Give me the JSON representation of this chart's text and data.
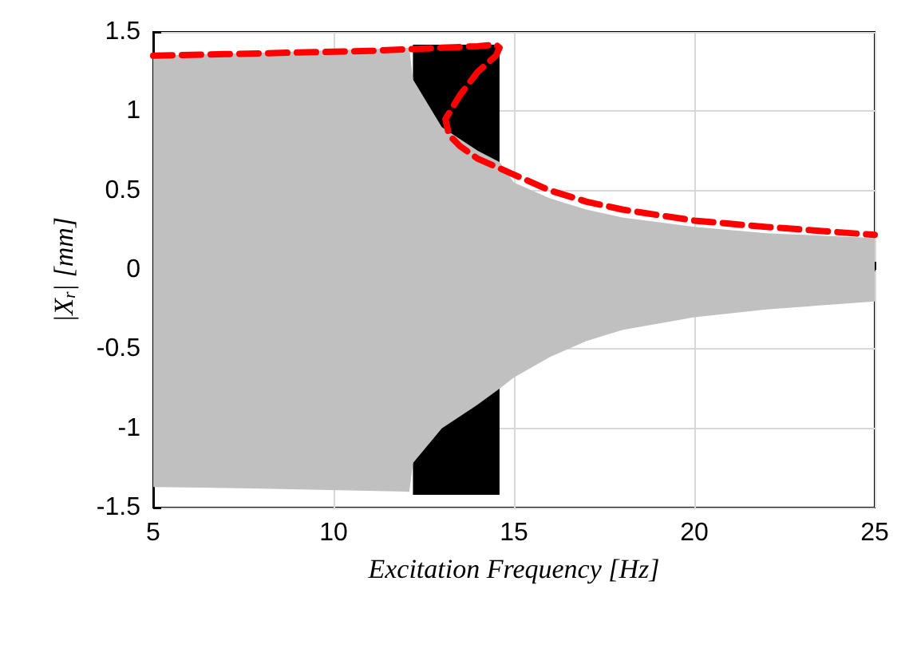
{
  "chart_data": {
    "type": "area",
    "xlabel": "Excitation Frequency [Hz]",
    "ylabel": "|X$_{r}$| [mm]",
    "xlim": [
      5,
      25
    ],
    "ylim": [
      -1.5,
      1.5
    ],
    "xticks": [
      5,
      10,
      15,
      20,
      25
    ],
    "yticks": [
      -1.5,
      -1,
      -0.5,
      0,
      0.5,
      1,
      1.5
    ],
    "grid": true,
    "series": [
      {
        "color": "#000000",
        "x": [
          12.2,
          14.6
        ],
        "values": [
          1.42,
          1.42
        ]
      },
      {
        "color": "#000000",
        "x": [
          12.2,
          14.6
        ],
        "values": [
          -1.42,
          -1.42
        ]
      },
      {
        "color": "#c0c0c0",
        "x": [
          5,
          8,
          12.1,
          12.2,
          13,
          14,
          14.6,
          15,
          16,
          17,
          18,
          20,
          22,
          25
        ],
        "values": [
          1.35,
          1.37,
          1.4,
          1.2,
          0.9,
          0.75,
          0.68,
          0.55,
          0.45,
          0.38,
          0.33,
          0.27,
          0.23,
          0.2
        ]
      },
      {
        "color": "#c0c0c0",
        "x": [
          5,
          8,
          12.1,
          12.2,
          13,
          14,
          14.6,
          15,
          16,
          17,
          18,
          20,
          22,
          25
        ],
        "values": [
          -1.37,
          -1.38,
          -1.4,
          -1.22,
          -1,
          -0.85,
          -0.75,
          -0.68,
          -0.55,
          -0.45,
          -0.38,
          -0.3,
          -0.25,
          -0.2
        ]
      },
      {
        "type": "line",
        "color": "#ff0000",
        "line_style": "dashed",
        "marker": "none",
        "x": [
          5,
          7,
          9,
          11,
          12,
          13,
          14,
          14.5,
          14.6,
          14.5,
          14,
          13.5,
          13.1,
          13.2,
          13.5,
          14,
          15,
          16,
          17,
          18,
          20,
          22,
          25
        ],
        "values": [
          1.35,
          1.36,
          1.37,
          1.38,
          1.39,
          1.4,
          1.41,
          1.42,
          1.4,
          1.35,
          1.25,
          1.1,
          0.95,
          0.85,
          0.78,
          0.7,
          0.6,
          0.5,
          0.43,
          0.38,
          0.31,
          0.27,
          0.22
        ]
      }
    ]
  }
}
